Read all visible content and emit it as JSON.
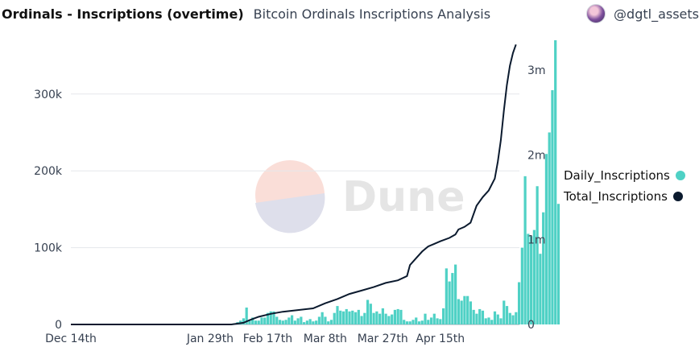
{
  "header": {
    "title": "Ordinals - Inscriptions (overtime)",
    "subtitle": "Bitcoin Ordinals Inscriptions Analysis",
    "author": "@dgtl_assets"
  },
  "watermark": {
    "text": "Dune"
  },
  "colors": {
    "bar": "#4fd1c5",
    "line": "#0b1a2e",
    "grid": "#e5e7eb",
    "axis_text": "#374151"
  },
  "chart_data": {
    "type": "bar",
    "x_tick_labels": [
      "Dec 14th",
      "Jan 29th",
      "Feb 17th",
      "Mar 8th",
      "Mar 27th",
      "Apr 15th"
    ],
    "x_tick_days": [
      0,
      46,
      65,
      84,
      103,
      122
    ],
    "left_ticks": [
      "0",
      "100k",
      "200k",
      "300k"
    ],
    "right_ticks": [
      "0",
      "1m",
      "2m",
      "3m"
    ],
    "ylim_left": [
      0,
      370000
    ],
    "ylim_right": [
      0,
      3350000
    ],
    "series": [
      {
        "name": "Daily_Inscriptions",
        "type": "bar",
        "axis": "left",
        "values": [
          0,
          0,
          0,
          0,
          0,
          0,
          0,
          0,
          0,
          0,
          0,
          0,
          0,
          0,
          0,
          0,
          0,
          0,
          0,
          0,
          0,
          0,
          0,
          0,
          0,
          0,
          0,
          0,
          0,
          0,
          0,
          0,
          0,
          0,
          0,
          0,
          0,
          0,
          0,
          0,
          0,
          0,
          0,
          0,
          0,
          0,
          0,
          0,
          0,
          0,
          0,
          0,
          0,
          0,
          1500,
          3000,
          5000,
          8000,
          22000,
          6000,
          9000,
          5000,
          5000,
          9000,
          9000,
          15000,
          17000,
          17000,
          10000,
          6000,
          5000,
          6000,
          9000,
          12000,
          5000,
          8000,
          10000,
          3000,
          5000,
          7000,
          4000,
          5000,
          10000,
          16000,
          10000,
          4000,
          6000,
          15000,
          24000,
          18000,
          17000,
          20000,
          17000,
          18000,
          16000,
          19000,
          11000,
          15000,
          32000,
          27000,
          15000,
          17000,
          14000,
          21000,
          14000,
          11000,
          13000,
          19000,
          20000,
          19000,
          6000,
          4000,
          4000,
          6000,
          9000,
          4000,
          5000,
          14000,
          6000,
          9000,
          14000,
          8000,
          7000,
          21000,
          73000,
          56000,
          67000,
          78000,
          33000,
          31000,
          37000,
          37000,
          30000,
          19000,
          14000,
          20000,
          18000,
          8000,
          9000,
          6000,
          17000,
          13000,
          8000,
          31000,
          24000,
          15000,
          12000,
          16000,
          55000,
          100000,
          193000,
          118000,
          115000,
          123000,
          180000,
          92000,
          146000,
          222000,
          250000,
          305000,
          370000,
          157000
        ]
      },
      {
        "name": "Total_Inscriptions",
        "type": "line",
        "axis": "right",
        "points": [
          [
            0,
            0
          ],
          [
            53,
            0
          ],
          [
            54,
            5000
          ],
          [
            57,
            20000
          ],
          [
            59,
            50000
          ],
          [
            62,
            90000
          ],
          [
            66,
            125000
          ],
          [
            70,
            150000
          ],
          [
            75,
            170000
          ],
          [
            80,
            190000
          ],
          [
            84,
            250000
          ],
          [
            88,
            300000
          ],
          [
            92,
            360000
          ],
          [
            96,
            400000
          ],
          [
            100,
            440000
          ],
          [
            104,
            490000
          ],
          [
            108,
            520000
          ],
          [
            111,
            570000
          ],
          [
            112,
            700000
          ],
          [
            114,
            780000
          ],
          [
            116,
            860000
          ],
          [
            118,
            920000
          ],
          [
            120,
            950000
          ],
          [
            122,
            980000
          ],
          [
            125,
            1020000
          ],
          [
            127,
            1060000
          ],
          [
            128,
            1120000
          ],
          [
            130,
            1150000
          ],
          [
            132,
            1200000
          ],
          [
            134,
            1400000
          ],
          [
            136,
            1500000
          ],
          [
            138,
            1580000
          ],
          [
            140,
            1720000
          ],
          [
            141,
            1920000
          ],
          [
            142,
            2170000
          ],
          [
            143,
            2520000
          ],
          [
            144,
            2820000
          ],
          [
            145,
            3050000
          ],
          [
            146,
            3200000
          ],
          [
            147,
            3300000
          ]
        ]
      }
    ],
    "legend": [
      "Daily_Inscriptions",
      "Total_Inscriptions"
    ],
    "legend_position": "right",
    "grid": true
  }
}
